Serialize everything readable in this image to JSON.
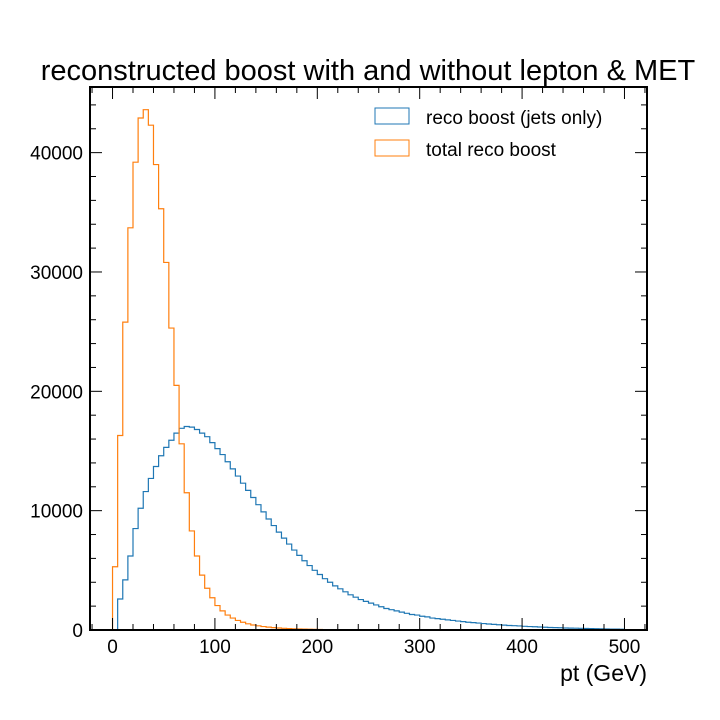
{
  "chart_data": {
    "type": "histogram",
    "title": "reconstructed boost with and without lepton & MET",
    "xlabel": "pt (GeV)",
    "ylabel": "",
    "xlim": [
      -22,
      522
    ],
    "ylim": [
      0,
      45500
    ],
    "bin_start": 0,
    "bin_width": 5,
    "x_ticks": [
      0,
      100,
      200,
      300,
      400,
      500
    ],
    "x_tick_labels": [
      "0",
      "100",
      "200",
      "300",
      "400",
      "500"
    ],
    "y_ticks": [
      0,
      10000,
      20000,
      30000,
      40000
    ],
    "y_tick_labels": [
      "0",
      "10000",
      "20000",
      "30000",
      "40000"
    ],
    "legend": {
      "position": "top-right"
    },
    "series": [
      {
        "name": "reco boost (jets only)",
        "color": "#1f77b4",
        "values": [
          0,
          2600,
          4200,
          6200,
          8500,
          10200,
          11600,
          12700,
          13700,
          14600,
          15300,
          15900,
          16500,
          16900,
          17050,
          17000,
          16800,
          16500,
          16200,
          15700,
          15200,
          14700,
          14100,
          13500,
          12900,
          12300,
          11700,
          11100,
          10500,
          9900,
          9300,
          8750,
          8200,
          7700,
          7200,
          6700,
          6250,
          5800,
          5400,
          5000,
          4650,
          4300,
          4000,
          3700,
          3450,
          3200,
          2950,
          2750,
          2550,
          2400,
          2250,
          2100,
          1950,
          1800,
          1700,
          1600,
          1500,
          1400,
          1300,
          1250,
          1150,
          1100,
          1000,
          950,
          900,
          850,
          800,
          750,
          700,
          650,
          620,
          580,
          540,
          500,
          470,
          440,
          410,
          380,
          360,
          340,
          310,
          290,
          270,
          250,
          230,
          210,
          200,
          190,
          170,
          160,
          150,
          140,
          130,
          120,
          110,
          100,
          90,
          80,
          70,
          60
        ]
      },
      {
        "name": "total reco boost",
        "color": "#ff7f0e",
        "values": [
          5300,
          16300,
          25800,
          33700,
          39200,
          42900,
          43600,
          42300,
          39000,
          35300,
          30800,
          25300,
          20500,
          15600,
          11500,
          8300,
          6200,
          4600,
          3500,
          2700,
          2050,
          1600,
          1250,
          1000,
          800,
          650,
          520,
          420,
          350,
          290,
          240,
          200,
          170,
          140,
          120,
          100,
          85,
          70,
          60,
          50,
          42,
          35,
          30,
          25,
          20,
          17,
          14,
          12,
          10,
          8,
          7,
          6,
          5,
          4,
          3,
          2,
          2,
          1,
          1,
          1,
          1,
          0,
          0,
          0,
          0,
          0,
          0,
          0,
          0,
          0,
          0,
          0,
          0,
          0,
          0,
          0,
          0,
          0,
          0,
          0,
          0,
          0,
          0,
          0,
          0,
          0,
          0,
          0,
          0,
          0,
          0,
          0,
          0,
          0,
          0,
          0,
          0,
          0,
          0,
          0
        ]
      }
    ]
  }
}
